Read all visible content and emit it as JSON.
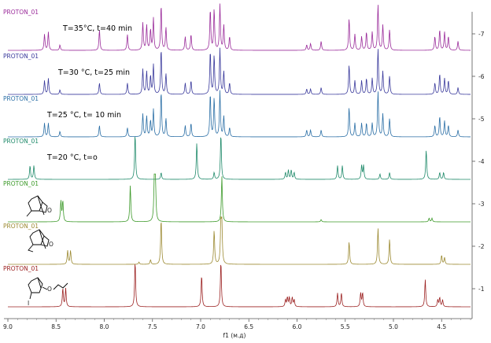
{
  "chart_data": {
    "type": "line",
    "title": "",
    "xlabel": "f1 (м.д)",
    "ylabel": "",
    "xlim": [
      9.0,
      4.2
    ],
    "x_ticks": [
      "9.0",
      "8.5",
      "8.0",
      "7.5",
      "7.0",
      "6.5",
      "6.0",
      "5.5",
      "5.0",
      "4.5"
    ],
    "y_ticks": [
      "1",
      "2",
      "3",
      "4",
      "5",
      "6",
      "7"
    ],
    "series": [
      {
        "track": 7,
        "name": "PROTON_01",
        "condition": "T=35°C, t=40 min",
        "color": "#9b2d9b",
        "peaks": [
          [
            8.62,
            0.35
          ],
          [
            8.58,
            0.4
          ],
          [
            8.46,
            0.12
          ],
          [
            8.05,
            0.45
          ],
          [
            7.76,
            0.35
          ],
          [
            7.6,
            0.6
          ],
          [
            7.56,
            0.55
          ],
          [
            7.52,
            0.45
          ],
          [
            7.49,
            0.7
          ],
          [
            7.41,
            1.0
          ],
          [
            7.36,
            0.5
          ],
          [
            7.16,
            0.3
          ],
          [
            7.1,
            0.35
          ],
          [
            6.9,
            0.9
          ],
          [
            6.86,
            0.9
          ],
          [
            6.8,
            1.0
          ],
          [
            6.76,
            0.55
          ],
          [
            6.7,
            0.3
          ],
          [
            5.9,
            0.12
          ],
          [
            5.86,
            0.15
          ],
          [
            5.75,
            0.2
          ],
          [
            5.46,
            0.7
          ],
          [
            5.4,
            0.35
          ],
          [
            5.33,
            0.3
          ],
          [
            5.28,
            0.4
          ],
          [
            5.22,
            0.4
          ],
          [
            5.16,
            1.0
          ],
          [
            5.11,
            0.55
          ],
          [
            5.04,
            0.45
          ],
          [
            4.57,
            0.3
          ],
          [
            4.52,
            0.45
          ],
          [
            4.47,
            0.4
          ],
          [
            4.43,
            0.3
          ],
          [
            4.33,
            0.2
          ]
        ]
      },
      {
        "track": 6,
        "name": "PROTON_01",
        "condition": "T=30 °C, t=25 min",
        "color": "#3a3a9c",
        "peaks": [
          [
            8.62,
            0.3
          ],
          [
            8.58,
            0.35
          ],
          [
            8.46,
            0.1
          ],
          [
            8.05,
            0.25
          ],
          [
            7.76,
            0.25
          ],
          [
            7.6,
            0.55
          ],
          [
            7.56,
            0.5
          ],
          [
            7.52,
            0.4
          ],
          [
            7.49,
            0.65
          ],
          [
            7.41,
            1.0
          ],
          [
            7.36,
            0.45
          ],
          [
            7.16,
            0.25
          ],
          [
            7.1,
            0.3
          ],
          [
            6.9,
            0.95
          ],
          [
            6.86,
            0.85
          ],
          [
            6.8,
            1.0
          ],
          [
            6.76,
            0.5
          ],
          [
            6.7,
            0.25
          ],
          [
            5.9,
            0.12
          ],
          [
            5.86,
            0.12
          ],
          [
            5.75,
            0.15
          ],
          [
            5.46,
            0.65
          ],
          [
            5.4,
            0.3
          ],
          [
            5.33,
            0.3
          ],
          [
            5.28,
            0.35
          ],
          [
            5.22,
            0.35
          ],
          [
            5.16,
            1.0
          ],
          [
            5.11,
            0.5
          ],
          [
            5.04,
            0.4
          ],
          [
            4.57,
            0.25
          ],
          [
            4.52,
            0.45
          ],
          [
            4.47,
            0.35
          ],
          [
            4.43,
            0.3
          ],
          [
            4.33,
            0.15
          ]
        ]
      },
      {
        "track": 5,
        "name": "PROTON_01",
        "condition": "T=25 °C, t= 10 min",
        "color": "#2b6fa6",
        "peaks": [
          [
            8.62,
            0.3
          ],
          [
            8.58,
            0.3
          ],
          [
            8.46,
            0.12
          ],
          [
            8.05,
            0.25
          ],
          [
            7.76,
            0.2
          ],
          [
            7.6,
            0.5
          ],
          [
            7.56,
            0.45
          ],
          [
            7.52,
            0.35
          ],
          [
            7.49,
            0.6
          ],
          [
            7.41,
            1.0
          ],
          [
            7.36,
            0.4
          ],
          [
            7.16,
            0.25
          ],
          [
            7.1,
            0.3
          ],
          [
            6.9,
            0.95
          ],
          [
            6.86,
            0.85
          ],
          [
            6.8,
            1.0
          ],
          [
            6.76,
            0.45
          ],
          [
            6.7,
            0.2
          ],
          [
            5.9,
            0.15
          ],
          [
            5.86,
            0.15
          ],
          [
            5.75,
            0.15
          ],
          [
            5.46,
            0.65
          ],
          [
            5.4,
            0.3
          ],
          [
            5.33,
            0.3
          ],
          [
            5.28,
            0.3
          ],
          [
            5.22,
            0.3
          ],
          [
            5.16,
            1.0
          ],
          [
            5.11,
            0.5
          ],
          [
            5.04,
            0.4
          ],
          [
            4.57,
            0.25
          ],
          [
            4.52,
            0.45
          ],
          [
            4.47,
            0.35
          ],
          [
            4.43,
            0.25
          ],
          [
            4.33,
            0.15
          ]
        ]
      },
      {
        "track": 4,
        "name": "PROTON_01",
        "condition": "T=20 °C, t=o",
        "color": "#1f8a6a",
        "peaks": [
          [
            8.77,
            0.3
          ],
          [
            8.73,
            0.3
          ],
          [
            7.68,
            1.0
          ],
          [
            7.41,
            0.15
          ],
          [
            7.04,
            0.8
          ],
          [
            6.86,
            0.15
          ],
          [
            6.79,
            1.0
          ],
          [
            6.12,
            0.15
          ],
          [
            6.09,
            0.2
          ],
          [
            6.06,
            0.2
          ],
          [
            6.03,
            0.15
          ],
          [
            5.58,
            0.3
          ],
          [
            5.53,
            0.3
          ],
          [
            5.33,
            0.3
          ],
          [
            5.31,
            0.3
          ],
          [
            5.14,
            0.12
          ],
          [
            5.04,
            0.15
          ],
          [
            4.66,
            0.65
          ],
          [
            4.52,
            0.15
          ],
          [
            4.48,
            0.15
          ]
        ]
      },
      {
        "track": 3,
        "name": "PROTON_01",
        "condition": "",
        "color": "#3d9a2a",
        "peaks": [
          [
            8.45,
            0.45
          ],
          [
            8.43,
            0.45
          ],
          [
            7.73,
            0.8
          ],
          [
            7.48,
            1.0
          ],
          [
            7.47,
            0.95
          ],
          [
            6.78,
            1.0
          ],
          [
            5.75,
            0.05
          ],
          [
            4.63,
            0.08
          ],
          [
            4.6,
            0.08
          ]
        ]
      },
      {
        "track": 2,
        "name": "PROTON_01",
        "condition": "",
        "color": "#9c8a32",
        "peaks": [
          [
            8.38,
            0.3
          ],
          [
            8.35,
            0.3
          ],
          [
            7.64,
            0.05
          ],
          [
            7.52,
            0.1
          ],
          [
            7.41,
            1.0
          ],
          [
            6.86,
            0.75
          ],
          [
            6.79,
            0.9
          ],
          [
            6.78,
            0.8
          ],
          [
            5.46,
            0.5
          ],
          [
            5.16,
            0.8
          ],
          [
            5.04,
            0.55
          ],
          [
            4.5,
            0.2
          ],
          [
            4.47,
            0.15
          ]
        ]
      },
      {
        "track": 1,
        "name": "PROTON_01",
        "condition": "",
        "color": "#9c2222",
        "peaks": [
          [
            8.43,
            0.4
          ],
          [
            8.4,
            0.4
          ],
          [
            7.68,
            1.0
          ],
          [
            6.99,
            0.7
          ],
          [
            6.79,
            1.0
          ],
          [
            6.12,
            0.15
          ],
          [
            6.1,
            0.2
          ],
          [
            6.08,
            0.2
          ],
          [
            6.05,
            0.2
          ],
          [
            6.03,
            0.15
          ],
          [
            5.58,
            0.3
          ],
          [
            5.54,
            0.3
          ],
          [
            5.34,
            0.3
          ],
          [
            5.32,
            0.3
          ],
          [
            4.67,
            0.6
          ],
          [
            4.54,
            0.15
          ],
          [
            4.52,
            0.2
          ],
          [
            4.49,
            0.15
          ]
        ]
      }
    ]
  }
}
